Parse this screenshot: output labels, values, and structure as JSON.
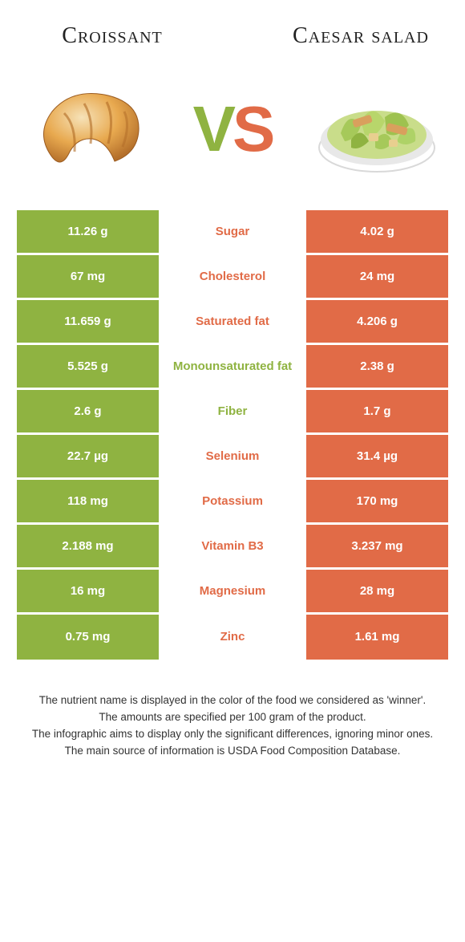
{
  "colors": {
    "green": "#8fb341",
    "orange": "#e16b47"
  },
  "foods": {
    "left": {
      "title": "Croissant"
    },
    "right": {
      "title": "Caesar salad"
    }
  },
  "vs": {
    "v": "V",
    "s": "S"
  },
  "rows": [
    {
      "left": "11.26 g",
      "label": "Sugar",
      "right": "4.02 g",
      "winner": "orange"
    },
    {
      "left": "67 mg",
      "label": "Cholesterol",
      "right": "24 mg",
      "winner": "orange"
    },
    {
      "left": "11.659 g",
      "label": "Saturated fat",
      "right": "4.206 g",
      "winner": "orange"
    },
    {
      "left": "5.525 g",
      "label": "Monounsaturated fat",
      "right": "2.38 g",
      "winner": "green"
    },
    {
      "left": "2.6 g",
      "label": "Fiber",
      "right": "1.7 g",
      "winner": "green"
    },
    {
      "left": "22.7 µg",
      "label": "Selenium",
      "right": "31.4 µg",
      "winner": "orange"
    },
    {
      "left": "118 mg",
      "label": "Potassium",
      "right": "170 mg",
      "winner": "orange"
    },
    {
      "left": "2.188 mg",
      "label": "Vitamin B3",
      "right": "3.237 mg",
      "winner": "orange"
    },
    {
      "left": "16 mg",
      "label": "Magnesium",
      "right": "28 mg",
      "winner": "orange"
    },
    {
      "left": "0.75 mg",
      "label": "Zinc",
      "right": "1.61 mg",
      "winner": "orange"
    }
  ],
  "footnotes": [
    "The nutrient name is displayed in the color of the food we considered as 'winner'.",
    "The amounts are specified per 100 gram of the product.",
    "The infographic aims to display only the significant differences, ignoring minor ones.",
    "The main source of information is USDA Food Composition Database."
  ]
}
